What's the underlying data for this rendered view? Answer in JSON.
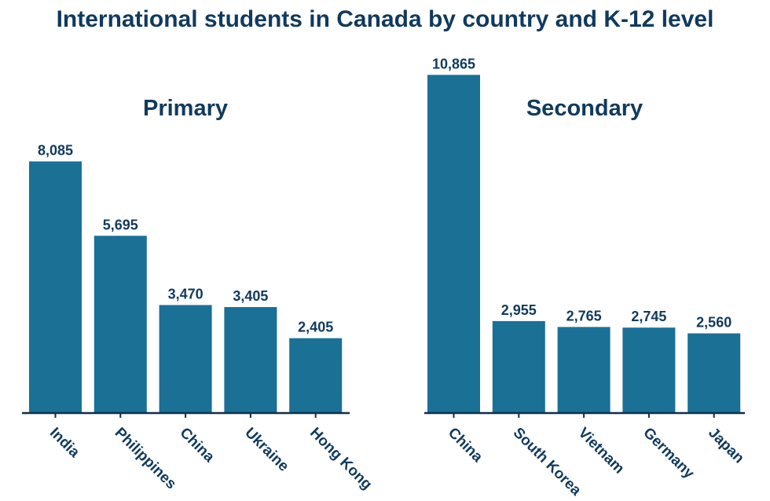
{
  "title": "International students in Canada by country and K-12 level",
  "colors": {
    "bar": "#1a7095",
    "text": "#103a5e",
    "axis": "#0f2f4a"
  },
  "chart_data": [
    {
      "type": "bar",
      "title": "Primary",
      "categories": [
        "India",
        "Philippines",
        "China",
        "Ukraine",
        "Hong Kong"
      ],
      "values": [
        8085,
        5695,
        3470,
        3405,
        2405
      ],
      "value_labels": [
        "8,085",
        "5,695",
        "3,470",
        "3,405",
        "2,405"
      ],
      "ylim": [
        0,
        11000
      ],
      "grid": false,
      "xlabel": "",
      "ylabel": ""
    },
    {
      "type": "bar",
      "title": "Secondary",
      "categories": [
        "China",
        "South Korea",
        "Vietnam",
        "Germany",
        "Japan"
      ],
      "values": [
        10865,
        2955,
        2765,
        2745,
        2560
      ],
      "value_labels": [
        "10,865",
        "2,955",
        "2,765",
        "2,745",
        "2,560"
      ],
      "ylim": [
        0,
        11000
      ],
      "grid": false,
      "xlabel": "",
      "ylabel": ""
    }
  ]
}
